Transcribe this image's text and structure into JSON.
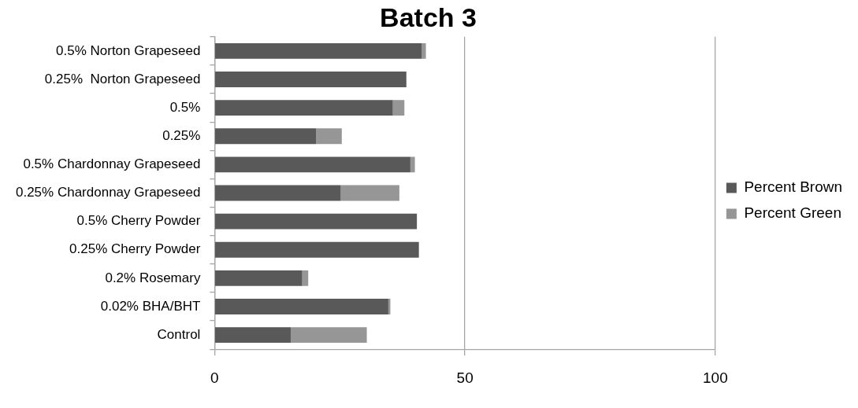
{
  "chart_data": {
    "type": "bar",
    "title": "Batch 3",
    "orientation": "horizontal",
    "stacked": true,
    "categories": [
      "0.5% Norton Grapeseed",
      "0.25%  Norton Grapeseed",
      "0.5%",
      "0.25%",
      "0.5% Chardonnay Grapeseed",
      "0.25% Chardonnay Grapeseed",
      "0.5% Cherry Powder",
      "0.25% Cherry Powder",
      "0.2% Rosemary",
      "0.02% BHA/BHT",
      "Control"
    ],
    "series": [
      {
        "name": "Percent Brown",
        "color": "#595959",
        "values": [
          41.4,
          38.3,
          35.6,
          20.3,
          39.1,
          25.2,
          40.4,
          40.8,
          17.5,
          34.7,
          15.2
        ]
      },
      {
        "name": "Percent Green",
        "color": "#969696",
        "values": [
          0.8,
          0,
          2.3,
          5.1,
          0.9,
          11.7,
          0,
          0,
          1.2,
          0.4,
          15.2
        ]
      }
    ],
    "xlim": [
      0,
      100
    ],
    "xticks": [
      0,
      50,
      100
    ],
    "grid": "x",
    "legend": "right"
  }
}
